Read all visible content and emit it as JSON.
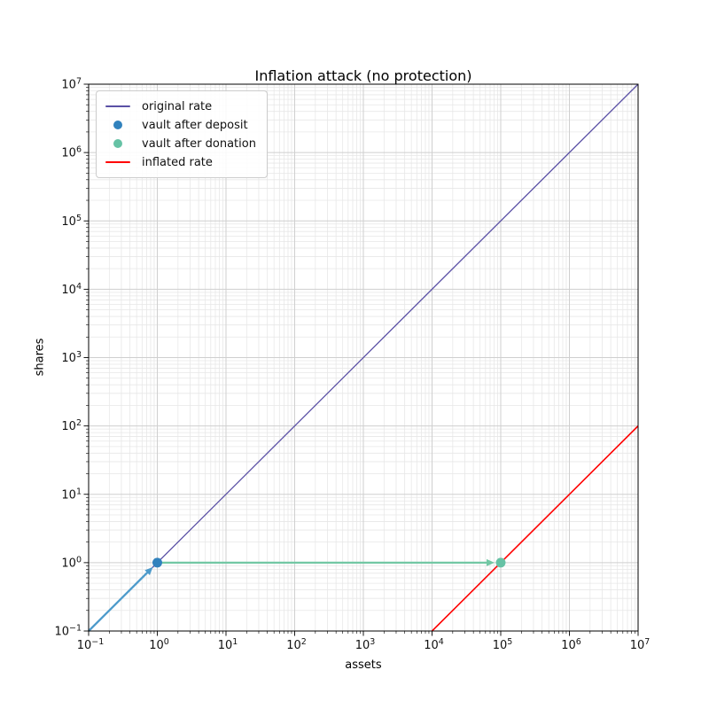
{
  "figure": {
    "title": "Inflation attack (no protection)",
    "xlabel": "assets",
    "ylabel": "shares"
  },
  "legend": {
    "position": "upper left",
    "items": [
      {
        "label": "original rate",
        "type": "line",
        "color": "#5A50A5"
      },
      {
        "label": "vault after deposit",
        "type": "dot",
        "color": "#3182BD"
      },
      {
        "label": "vault after donation",
        "type": "dot",
        "color": "#66C2A5"
      },
      {
        "label": "inflated rate",
        "type": "line",
        "color": "#FF0000"
      }
    ]
  },
  "chart_data": {
    "type": "line",
    "title": "Inflation attack (no protection)",
    "xlabel": "assets",
    "ylabel": "shares",
    "x_scale": "log",
    "y_scale": "log",
    "xlim": [
      0.1,
      10000000
    ],
    "ylim": [
      0.1,
      10000000
    ],
    "x_tick_exponents": [
      -1,
      0,
      1,
      2,
      3,
      4,
      5,
      6,
      7
    ],
    "y_tick_exponents": [
      -1,
      0,
      1,
      2,
      3,
      4,
      5,
      6,
      7
    ],
    "grid": {
      "major": true,
      "minor": true,
      "major_color": "#CFCFCF",
      "minor_color": "#E7E7E7"
    },
    "legend_position": "upper left",
    "series": [
      {
        "name": "original rate",
        "color": "#5A50A5",
        "width": 1.3,
        "points": [
          [
            0.1,
            0.1
          ],
          [
            10000000,
            10000000
          ]
        ]
      },
      {
        "name": "inflated rate",
        "color": "#FF0000",
        "width": 1.6,
        "points": [
          [
            10000,
            0.1
          ],
          [
            10000000,
            100
          ]
        ]
      }
    ],
    "markers": [
      {
        "name": "vault after deposit",
        "color": "#3182BD",
        "x": 1,
        "y": 1,
        "radius": 5.5
      },
      {
        "name": "vault after donation",
        "color": "#66C2A5",
        "x": 100000,
        "y": 1,
        "radius": 5.5
      }
    ],
    "arrows": [
      {
        "name": "deposit-arrow",
        "color": "#4E9BCB",
        "width": 2.3,
        "from": [
          0.1,
          0.1
        ],
        "to": [
          1,
          1
        ]
      },
      {
        "name": "donation-arrow",
        "color": "#72C7A4",
        "width": 2.3,
        "from": [
          1,
          1
        ],
        "to": [
          100000,
          1
        ]
      }
    ]
  }
}
